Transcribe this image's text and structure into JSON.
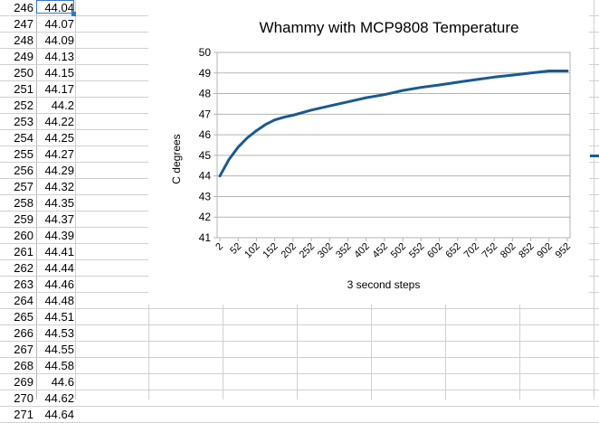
{
  "sheet": {
    "rows": [
      {
        "index": "246",
        "value": "44.04"
      },
      {
        "index": "247",
        "value": "44.07"
      },
      {
        "index": "248",
        "value": "44.09"
      },
      {
        "index": "249",
        "value": "44.13"
      },
      {
        "index": "250",
        "value": "44.15"
      },
      {
        "index": "251",
        "value": "44.17"
      },
      {
        "index": "252",
        "value": "44.2"
      },
      {
        "index": "253",
        "value": "44.22"
      },
      {
        "index": "254",
        "value": "44.25"
      },
      {
        "index": "255",
        "value": "44.27"
      },
      {
        "index": "256",
        "value": "44.29"
      },
      {
        "index": "257",
        "value": "44.32"
      },
      {
        "index": "258",
        "value": "44.35"
      },
      {
        "index": "259",
        "value": "44.37"
      },
      {
        "index": "260",
        "value": "44.39"
      },
      {
        "index": "261",
        "value": "44.41"
      },
      {
        "index": "262",
        "value": "44.44"
      },
      {
        "index": "263",
        "value": "44.46"
      },
      {
        "index": "264",
        "value": "44.48"
      },
      {
        "index": "265",
        "value": "44.51"
      },
      {
        "index": "266",
        "value": "44.53"
      },
      {
        "index": "267",
        "value": "44.55"
      },
      {
        "index": "268",
        "value": "44.58"
      },
      {
        "index": "269",
        "value": "44.6"
      },
      {
        "index": "270",
        "value": "44.62"
      },
      {
        "index": "271",
        "value": "44.64"
      }
    ]
  },
  "chart_data": {
    "type": "line",
    "title": "Whammy with MCP9808 Temperature",
    "xlabel": "3 second steps",
    "ylabel": "C degrees",
    "ylim": [
      41,
      50
    ],
    "yticks": [
      "41",
      "42",
      "43",
      "44",
      "45",
      "46",
      "47",
      "48",
      "49",
      "50"
    ],
    "xticks": [
      "2",
      "52",
      "102",
      "152",
      "202",
      "252",
      "302",
      "352",
      "402",
      "452",
      "502",
      "552",
      "602",
      "652",
      "702",
      "752",
      "802",
      "852",
      "902",
      "952"
    ],
    "grid": true,
    "line_color": "#1a5a90",
    "series": [
      {
        "x": [
          2,
          27,
          52,
          77,
          102,
          127,
          152,
          177,
          202,
          252,
          302,
          352,
          402,
          452,
          502,
          552,
          602,
          652,
          702,
          752,
          802,
          852,
          902,
          952
        ],
        "values": [
          44.0,
          44.8,
          45.4,
          45.85,
          46.2,
          46.5,
          46.72,
          46.85,
          46.95,
          47.2,
          47.4,
          47.6,
          47.8,
          47.95,
          48.15,
          48.3,
          48.42,
          48.55,
          48.68,
          48.8,
          48.9,
          49.0,
          49.1,
          49.1
        ]
      }
    ]
  }
}
